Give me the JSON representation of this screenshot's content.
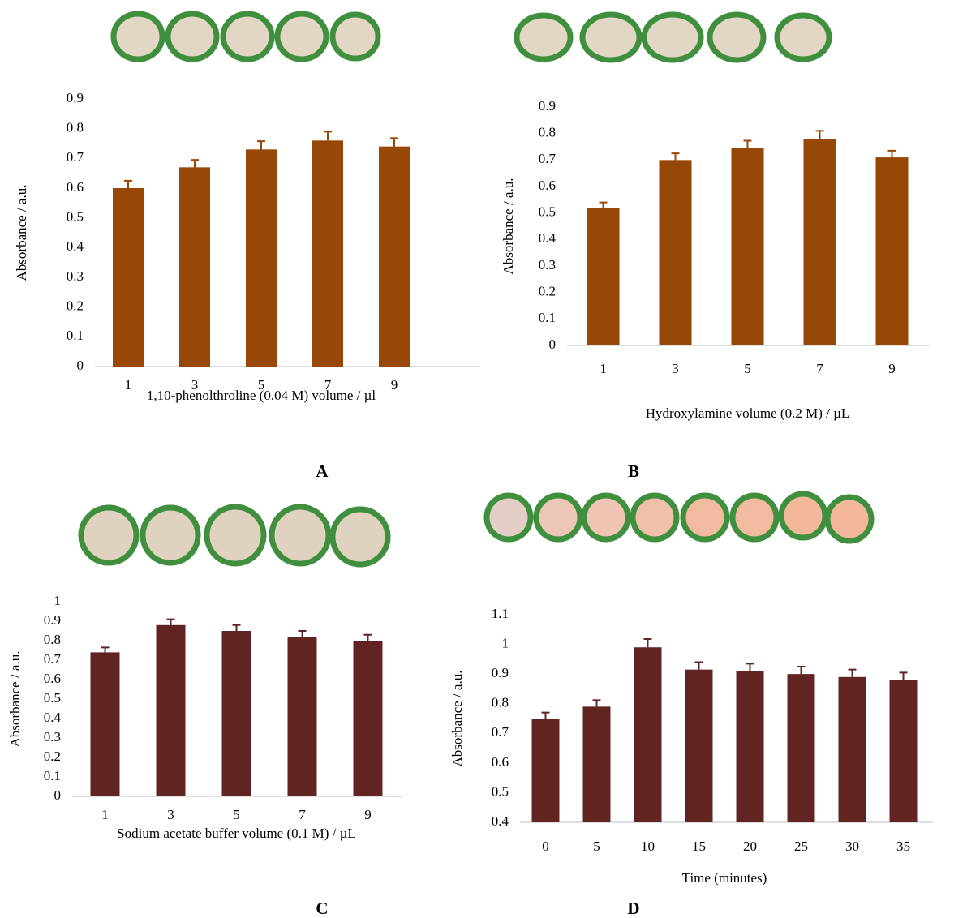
{
  "chart_data": [
    {
      "type": "bar",
      "panel": "A",
      "y_label": "Absorbance / a.u.",
      "x_label": "1,10-phenolthroline (0.04 M) volume / µl",
      "categories": [
        "1",
        "3",
        "5",
        "7",
        "9"
      ],
      "values": [
        0.6,
        0.67,
        0.73,
        0.76,
        0.74
      ],
      "errors": [
        0.025,
        0.025,
        0.028,
        0.03,
        0.028
      ],
      "color": "#974706",
      "ylim": [
        0,
        0.9
      ],
      "yticks": [
        0,
        0.1,
        0.2,
        0.3,
        0.4,
        0.5,
        0.6,
        0.7,
        0.8,
        0.9
      ]
    },
    {
      "type": "bar",
      "panel": "B",
      "y_label": "Absorbance / a.u.",
      "x_label": "Hydroxylamine volume (0.2 M) / µL",
      "categories": [
        "1",
        "3",
        "5",
        "7",
        "9"
      ],
      "values": [
        0.52,
        0.7,
        0.745,
        0.78,
        0.71
      ],
      "errors": [
        0.02,
        0.025,
        0.028,
        0.03,
        0.025
      ],
      "color": "#974706",
      "ylim": [
        0,
        0.9
      ],
      "yticks": [
        0,
        0.1,
        0.2,
        0.3,
        0.4,
        0.5,
        0.6,
        0.7,
        0.8,
        0.9
      ]
    },
    {
      "type": "bar",
      "panel": "C",
      "y_label": "Absorbance / a.u.",
      "x_label": "Sodium acetate buffer volume (0.1 M) / µL",
      "categories": [
        "1",
        "3",
        "5",
        "7",
        "9"
      ],
      "values": [
        0.74,
        0.88,
        0.85,
        0.82,
        0.8
      ],
      "errors": [
        0.025,
        0.03,
        0.03,
        0.03,
        0.03
      ],
      "color": "#622423",
      "ylim": [
        0,
        1
      ],
      "yticks": [
        0,
        0.1,
        0.2,
        0.3,
        0.4,
        0.5,
        0.6,
        0.7,
        0.8,
        0.9,
        1
      ]
    },
    {
      "type": "bar",
      "panel": "D",
      "y_label": "Absorbance / a.u.",
      "x_label": "Time (minutes)",
      "categories": [
        "0",
        "5",
        "10",
        "15",
        "20",
        "25",
        "30",
        "35"
      ],
      "values": [
        0.75,
        0.79,
        0.99,
        0.915,
        0.91,
        0.9,
        0.89,
        0.88
      ],
      "errors": [
        0.02,
        0.022,
        0.028,
        0.025,
        0.025,
        0.025,
        0.025,
        0.025
      ],
      "color": "#622423",
      "ylim": [
        0.4,
        1.1
      ],
      "yticks": [
        0.4,
        0.5,
        0.6,
        0.7,
        0.8,
        0.9,
        1,
        1.1
      ]
    }
  ]
}
